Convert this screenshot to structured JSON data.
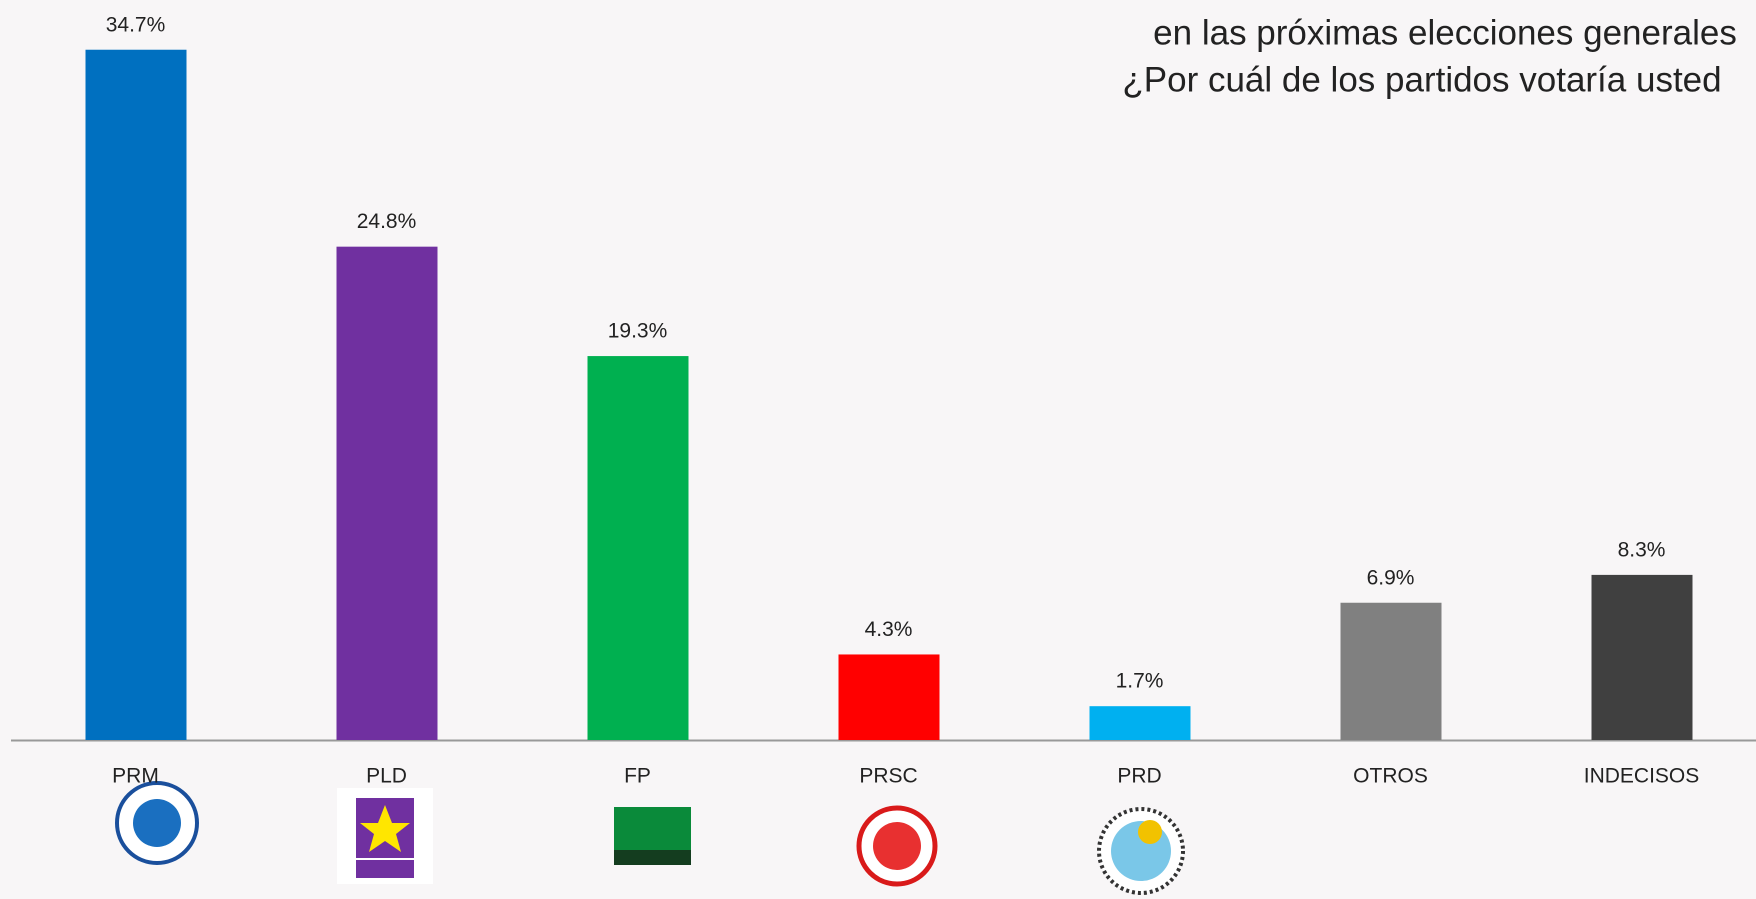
{
  "chart_data": {
    "type": "bar",
    "title_lines": [
      "en las próximas elecciones generales",
      "¿Por cuál de los partidos votaría usted"
    ],
    "categories": [
      "PRM",
      "PLD",
      "FP",
      "PRSC",
      "PRD",
      "OTROS",
      "INDECISOS"
    ],
    "values": [
      34.7,
      24.8,
      19.3,
      4.3,
      1.7,
      6.9,
      8.3
    ],
    "value_labels": [
      "34.7%",
      "24.8%",
      "19.3%",
      "4.3%",
      "1.7%",
      "6.9%",
      "8.3%"
    ],
    "colors": [
      "#0070c0",
      "#7030a0",
      "#00b050",
      "#ff0000",
      "#00b0f0",
      "#808080",
      "#404040"
    ],
    "ylim": [
      0,
      37.2
    ]
  }
}
